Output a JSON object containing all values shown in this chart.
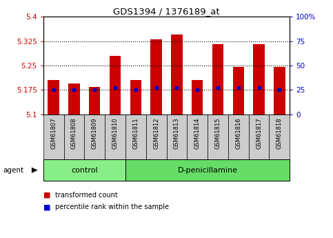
{
  "title": "GDS1394 / 1376189_at",
  "samples": [
    "GSM61807",
    "GSM61808",
    "GSM61809",
    "GSM61810",
    "GSM61811",
    "GSM61812",
    "GSM61813",
    "GSM61814",
    "GSM61815",
    "GSM61816",
    "GSM61817",
    "GSM61818"
  ],
  "transformed_counts": [
    5.205,
    5.195,
    5.185,
    5.28,
    5.205,
    5.33,
    5.345,
    5.205,
    5.315,
    5.245,
    5.315,
    5.245
  ],
  "percentile_ranks": [
    25,
    25,
    25,
    27,
    25,
    27,
    27,
    25,
    27,
    27,
    27,
    25
  ],
  "bar_base": 5.1,
  "ylim": [
    5.1,
    5.4
  ],
  "right_ylim": [
    0,
    100
  ],
  "right_yticks": [
    0,
    25,
    50,
    75,
    100
  ],
  "right_yticklabels": [
    "0",
    "25",
    "50",
    "75",
    "100%"
  ],
  "left_yticks": [
    5.1,
    5.175,
    5.25,
    5.325,
    5.4
  ],
  "left_yticklabels": [
    "5.1",
    "5.175",
    "5.25",
    "5.325",
    "5.4"
  ],
  "hlines": [
    5.175,
    5.25,
    5.325
  ],
  "bar_color": "#cc0000",
  "dot_color": "#0000cc",
  "bar_width": 0.55,
  "groups": [
    {
      "label": "control",
      "start": 0,
      "end": 3,
      "color": "#88ee88"
    },
    {
      "label": "D-penicillamine",
      "start": 4,
      "end": 11,
      "color": "#66dd66"
    }
  ],
  "sample_box_color": "#cccccc",
  "ylabel_left_color": "#cc0000",
  "ylabel_right_color": "#0000cc",
  "legend_items": [
    {
      "label": "transformed count",
      "color": "#cc0000"
    },
    {
      "label": "percentile rank within the sample",
      "color": "#0000cc"
    }
  ],
  "agent_label": "agent",
  "figsize": [
    4.83,
    3.45
  ],
  "dpi": 100
}
